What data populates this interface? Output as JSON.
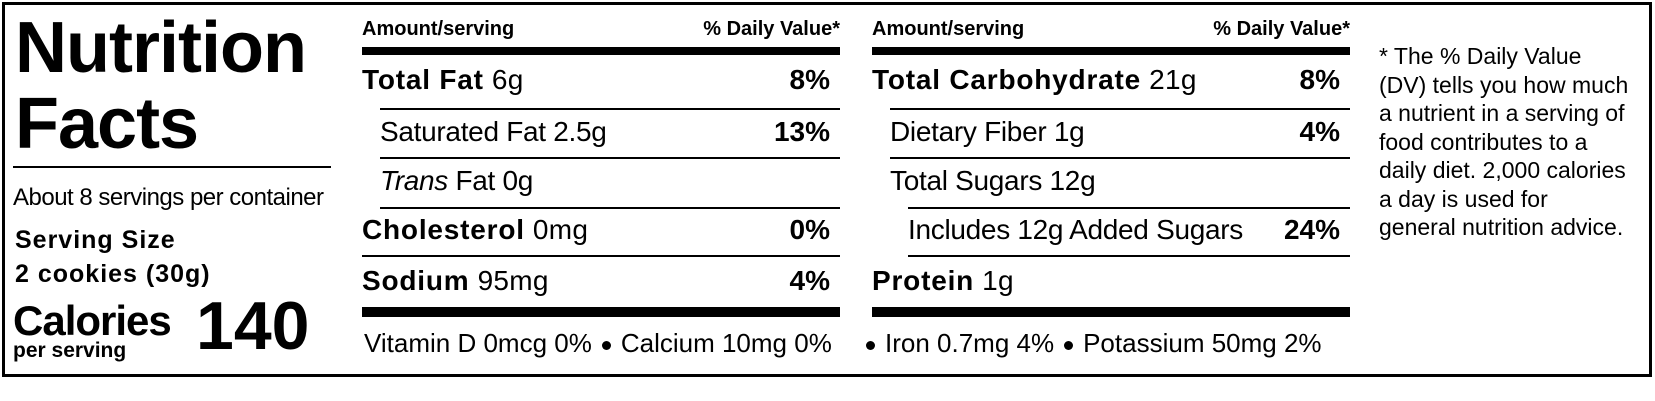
{
  "title": "Nutrition Facts",
  "servings": "About 8 servings per container",
  "serving_size_label": "Serving Size",
  "serving_size": "2 cookies (30g)",
  "calories_label": "Calories",
  "calories_sub": "per serving",
  "calories": "140",
  "columns": [
    {
      "header_amount": "Amount/serving",
      "header_dv": "% Daily Value*",
      "rows": [
        {
          "name": "Total Fat",
          "amount": "6g",
          "dv": "8%",
          "bold": true,
          "indent": 0
        },
        {
          "name": "Saturated Fat",
          "amount": "2.5g",
          "dv": "13%",
          "bold": false,
          "indent": 1
        },
        {
          "italic": "Trans",
          "name": "Fat",
          "amount": "0g",
          "bold": false,
          "indent": 1
        },
        {
          "name": "Cholesterol",
          "amount": "0mg",
          "dv": "0%",
          "bold": true,
          "indent": 0
        },
        {
          "name": "Sodium",
          "amount": "95mg",
          "dv": "4%",
          "bold": true,
          "indent": 0
        }
      ],
      "vitamins": [
        "Vitamin D 0mcg 0%",
        "Calcium 10mg 0%"
      ]
    },
    {
      "header_amount": "Amount/serving",
      "header_dv": "% Daily Value*",
      "rows": [
        {
          "name": "Total Carbohydrate",
          "amount": "21g",
          "dv": "8%",
          "bold": true,
          "indent": 0
        },
        {
          "name": "Dietary Fiber",
          "amount": "1g",
          "dv": "4%",
          "bold": false,
          "indent": 1
        },
        {
          "name": "Total Sugars",
          "amount": "12g",
          "bold": false,
          "indent": 1
        },
        {
          "name": "Includes 12g Added Sugars",
          "dv": "24%",
          "bold": false,
          "indent": 2
        },
        {
          "name": "Protein",
          "amount": "1g",
          "bold": true,
          "indent": 0
        }
      ],
      "vitamins": [
        "Iron 0.7mg 4%",
        "Potassium 50mg 2%"
      ]
    }
  ],
  "footnote": "* The % Daily Value (DV) tells you how much a nutrient in a serving of food contributes to a daily diet. 2,000 calories a day is used for general nutrition advice."
}
